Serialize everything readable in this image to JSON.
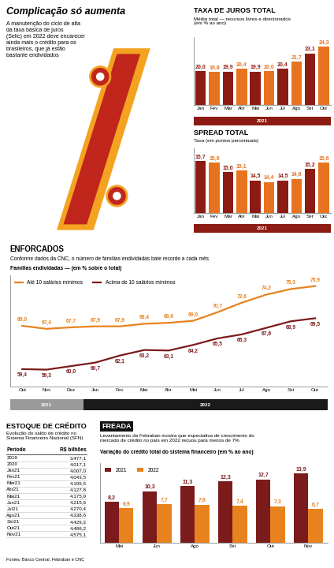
{
  "header": {
    "title": "Complicação só aumenta",
    "subtitle": "A manutenção do ciclo de alta da taxa básica de juros (Selic) em 2022 deve encarecer ainda mais o crédito para os brasileiros, que já estão bastante endividados"
  },
  "chart_data": [
    {
      "type": "bar",
      "title": "TAXA DE JUROS TOTAL",
      "subtitle": "Média total — recursos livres e direcionados (em % ao ano)",
      "categories": [
        "Jan",
        "Fev",
        "Mar",
        "Abr",
        "Mai",
        "Jun",
        "Jul",
        "Ago",
        "Set",
        "Out"
      ],
      "values": [
        20.0,
        19.8,
        19.9,
        20.4,
        19.9,
        20.0,
        20.4,
        21.7,
        23.1,
        24.3
      ],
      "value_labels": [
        "20,0",
        "19,8",
        "19,9",
        "20,4",
        "19,9",
        "20,0",
        "20,4",
        "21,7",
        "23,1",
        "24,3"
      ],
      "colors": [
        "#8C1C13",
        "#E8731F",
        "#8C1C13",
        "#E8731F",
        "#8C1C13",
        "#E8731F",
        "#8C1C13",
        "#E8731F",
        "#8C1C13",
        "#E8731F"
      ],
      "ylim": [
        14,
        26
      ],
      "yticks": [],
      "tick_labels": "x",
      "data_labels": true,
      "x_groups": [
        {
          "label": "2021",
          "count": 10,
          "color": "#8C1C13"
        }
      ]
    },
    {
      "type": "bar",
      "title": "SPREAD TOTAL",
      "subtitle": "Taxa (em pontos percentuais)",
      "categories": [
        "Jan",
        "Fev",
        "Mar",
        "Abr",
        "Mai",
        "Jun",
        "Jul",
        "Ago",
        "Set",
        "Out"
      ],
      "values": [
        15.7,
        15.6,
        15.0,
        15.1,
        14.5,
        14.4,
        14.5,
        14.6,
        15.2,
        15.6
      ],
      "value_labels": [
        "15,7",
        "15,6",
        "15,0",
        "15,1",
        "14,5",
        "14,4",
        "14,5",
        "14,6",
        "15,2",
        "15,6"
      ],
      "colors": [
        "#8C1C13",
        "#E8731F",
        "#8C1C13",
        "#E8731F",
        "#8C1C13",
        "#E8731F",
        "#8C1C13",
        "#E8731F",
        "#8C1C13",
        "#E8731F"
      ],
      "ylim": [
        12.5,
        16.5
      ],
      "yticks": [],
      "tick_labels": "x",
      "data_labels": true,
      "x_groups": [
        {
          "label": "2021",
          "count": 10,
          "color": "#8C1C13"
        }
      ]
    },
    {
      "type": "line",
      "title": "ENFORCADOS",
      "subtitle": "Conforme dados da CNC, o número de famílias endividadas bate recorde a cada mês",
      "ylabel": "Famílias endividadas — (em % sobre o total)",
      "categories": [
        "Out",
        "Nov",
        "Dez",
        "Jan",
        "Fev",
        "Mar",
        "Abr",
        "Mai",
        "Jun",
        "Jul",
        "Ago",
        "Set",
        "Out"
      ],
      "series": [
        {
          "name": "Até 10 salários mínimos",
          "color": "#E8821E",
          "values": [
            68.0,
            67.4,
            67.7,
            67.9,
            67.9,
            68.4,
            68.6,
            69.0,
            70.7,
            72.6,
            74.2,
            75.3,
            75.9
          ],
          "value_labels": [
            "68,0",
            "67,4",
            "67,7",
            "67,9",
            "67,9",
            "68,4",
            "68,6",
            "69,0",
            "70,7",
            "72,6",
            "74,2",
            "75,3",
            "75,9"
          ]
        },
        {
          "name": "Acima de 10 salários mínimos",
          "color": "#7B1B1B",
          "values": [
            59.4,
            59.3,
            60.0,
            60.7,
            62.1,
            63.2,
            63.1,
            64.2,
            65.5,
            66.3,
            67.6,
            68.9,
            69.5
          ],
          "value_labels": [
            "59,4",
            "59,3",
            "60,0",
            "60,7",
            "62,1",
            "63,2",
            "63,1",
            "64,2",
            "65,5",
            "66,3",
            "67,6",
            "68,9",
            "69,5"
          ]
        }
      ],
      "ylim": [
        56,
        78
      ],
      "yticks": [],
      "tick_labels": "x",
      "data_labels": true,
      "legend": "upper left",
      "x_groups": [
        {
          "label": "2021",
          "count": 3,
          "color": "#9A9A9A"
        },
        {
          "label": "2022",
          "count": 10,
          "color": "#1A1A1A"
        }
      ]
    },
    {
      "type": "bar",
      "title": "FREADA",
      "subtitle": "Levantamento da Febraban mostra que expectativa de crescimento do mercado de crédito no país em 2022 recuou para menos de 7%",
      "ylabel": "Variação do crédito total do sistema financeiro (em % ao ano)",
      "categories": [
        "Mai",
        "Jun",
        "Ago",
        "Set",
        "Out",
        "Nov"
      ],
      "series": [
        {
          "name": "2021",
          "color": "#7B1B1B",
          "values": [
            8.2,
            10.3,
            11.3,
            12.3,
            12.7,
            13.9
          ],
          "value_labels": [
            "8,2",
            "10,3",
            "11,3",
            "12,3",
            "12,7",
            "13,9"
          ]
        },
        {
          "name": "2022",
          "color": "#E8821E",
          "values": [
            6.9,
            7.7,
            7.6,
            7.4,
            7.3,
            6.7
          ],
          "value_labels": [
            "6,9",
            "7,7",
            "7,6",
            "7,4",
            "7,3",
            "6,7"
          ]
        }
      ],
      "ylim": [
        0,
        16
      ],
      "yticks": [],
      "tick_labels": "x",
      "data_labels": true,
      "legend": "upper left"
    }
  ],
  "table": {
    "title": "ESTOQUE DE CRÉDITO",
    "subtitle": "Evolução do saldo de crédito no Sistema Financeiro Nacional (SFN)",
    "columns": [
      "Período",
      "R$ bilhões"
    ],
    "rows": [
      [
        "2019",
        "3.477,1"
      ],
      [
        "2020",
        "4.017,1"
      ],
      [
        "Jan21",
        "4.007,0"
      ],
      [
        "Fev21",
        "4.043,5"
      ],
      [
        "Mar21",
        "4.105,5"
      ],
      [
        "Abr21",
        "4.127,8"
      ],
      [
        "Mai21",
        "4.175,9"
      ],
      [
        "Jun21",
        "4.215,6"
      ],
      [
        "Jul21",
        "4.270,4"
      ],
      [
        "Ago21",
        "4.338,6"
      ],
      [
        "Set21",
        "4.429,3"
      ],
      [
        "Out21",
        "4.486,2"
      ],
      [
        "Nov21",
        "4.575,1"
      ]
    ]
  },
  "source": "Fontes: Banco Central, Febraban e CNC"
}
